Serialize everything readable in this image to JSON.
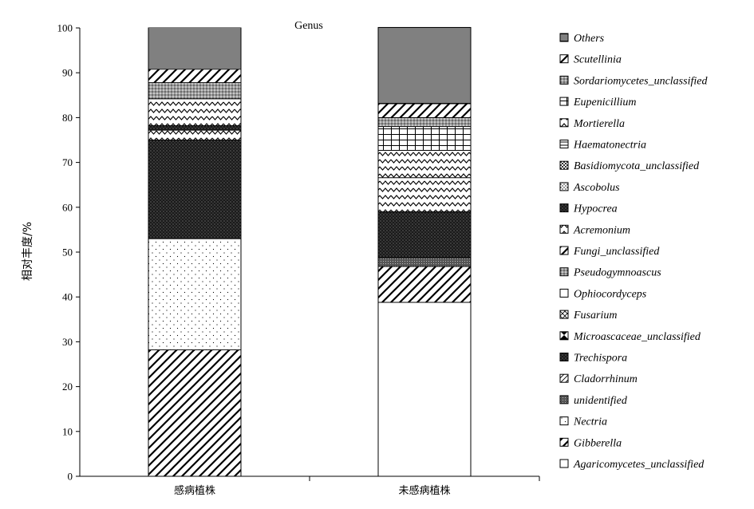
{
  "chart_data": {
    "type": "bar",
    "stacked": true,
    "title": "Genus",
    "ylabel": "相对丰度/%",
    "xlabel": "",
    "ylim": [
      0,
      100
    ],
    "yticks": [
      0,
      10,
      20,
      30,
      40,
      50,
      60,
      70,
      80,
      90,
      100
    ],
    "categories": [
      "感病植株",
      "未感病植株"
    ],
    "legend_position": "right",
    "series": [
      {
        "name": "Agaricomycetes_unclassified",
        "values": [
          0.0,
          38.8
        ],
        "pattern": "blank"
      },
      {
        "name": "Gibberella",
        "values": [
          28.2,
          8.0
        ],
        "pattern": "diag-wide"
      },
      {
        "name": "Nectria",
        "values": [
          24.8,
          0.0
        ],
        "pattern": "dots-sparse"
      },
      {
        "name": "unidentified",
        "values": [
          0.0,
          2.0
        ],
        "pattern": "dense-gray"
      },
      {
        "name": "Cladorrhinum",
        "values": [
          0.0,
          0.0
        ],
        "pattern": "diag-fine"
      },
      {
        "name": "Trechispora",
        "values": [
          22.0,
          10.2
        ],
        "pattern": "dark-dots"
      },
      {
        "name": "Microascaceae_unclassified",
        "values": [
          0.0,
          0.0
        ],
        "pattern": "diamond"
      },
      {
        "name": "Fusarium",
        "values": [
          0.0,
          0.0
        ],
        "pattern": "cross-diag"
      },
      {
        "name": "Ophiocordyceps",
        "values": [
          0.0,
          0.0
        ],
        "pattern": "blank"
      },
      {
        "name": "Pseudogymnoascus",
        "values": [
          0.0,
          0.0
        ],
        "pattern": "gray-dots"
      },
      {
        "name": "Fungi_unclassified",
        "values": [
          0.0,
          0.0
        ],
        "pattern": "diag-wide"
      },
      {
        "name": "Acremonium",
        "values": [
          2.2,
          7.6
        ],
        "pattern": "wave"
      },
      {
        "name": "Hypocrea",
        "values": [
          1.0,
          0.0
        ],
        "pattern": "dark-dots"
      },
      {
        "name": "Ascobolus",
        "values": [
          0.0,
          0.0
        ],
        "pattern": "dots-dense"
      },
      {
        "name": "Basidiomycota_unclassified",
        "values": [
          0.0,
          0.0
        ],
        "pattern": "checker"
      },
      {
        "name": "Haematonectria",
        "values": [
          0.0,
          0.0
        ],
        "pattern": "hlines"
      },
      {
        "name": "Mortierella",
        "values": [
          6.0,
          6.1
        ],
        "pattern": "wave"
      },
      {
        "name": "Eupenicillium",
        "values": [
          0.0,
          5.3
        ],
        "pattern": "grid"
      },
      {
        "name": "Sordariomycetes_unclassified",
        "values": [
          3.6,
          2.0
        ],
        "pattern": "gray-dots"
      },
      {
        "name": "Scutellinia",
        "values": [
          3.0,
          3.1
        ],
        "pattern": "diag-wide"
      },
      {
        "name": "Others",
        "values": [
          9.2,
          17.0
        ],
        "pattern": "mix"
      }
    ]
  }
}
